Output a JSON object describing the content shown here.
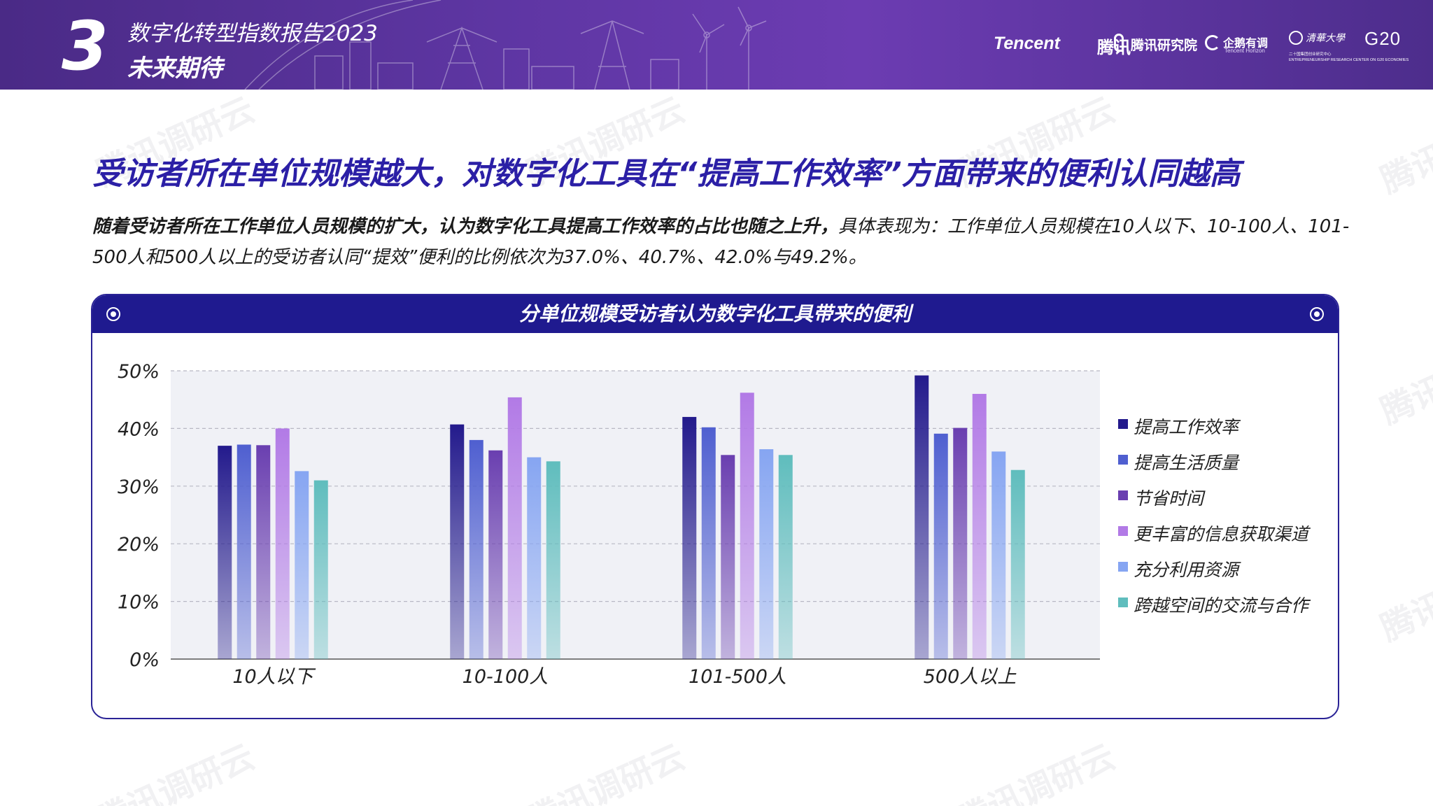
{
  "header": {
    "section_number": "3",
    "report_title": "数字化转型指数报告2023",
    "section_name": "未来期待",
    "logos": {
      "tencent": "Tencent",
      "tencent_cn": "腾讯",
      "research": "腾讯研究院",
      "penguin": "企鹅有调",
      "penguin_sub": "Tencent Horizon",
      "tsinghua": "清華大學",
      "g20": "G20",
      "erc_line1": "二十国集团创业研究中心",
      "erc_line2": "ENTREPRENEURSHIP RESEARCH CENTER ON G20 ECONOMIES"
    }
  },
  "headline": "受访者所在单位规模越大，对数字化工具在“提高工作效率”方面带来的便利认同越高",
  "description": {
    "bold": "随着受访者所在工作单位人员规模的扩大，认为数字化工具提高工作效率的占比也随之上升，",
    "normal": "具体表现为：工作单位人员规模在10人以下、10-100人、101-500人和500人以上的受访者认同“提效”便利的比例依次为37.0%、40.7%、42.0%与49.2%。"
  },
  "watermark": "腾讯调研云",
  "colors": {
    "header_bg": "#5a34a0",
    "headline": "#2b1fa6",
    "card_border": "#2a2396",
    "card_head": "#1f1a8f",
    "plot_bg": "#f0f1f6"
  },
  "chart_data": {
    "type": "bar",
    "title": "分单位规模受访者认为数字化工具带来的便利",
    "categories": [
      "10人以下",
      "10-100人",
      "101-500人",
      "500人以上"
    ],
    "ylim": [
      0,
      50
    ],
    "yticks": [
      0,
      10,
      20,
      30,
      40,
      50
    ],
    "ytick_labels": [
      "0%",
      "10%",
      "20%",
      "30%",
      "40%",
      "50%"
    ],
    "grid": true,
    "legend_position": "right",
    "series": [
      {
        "name": "提高工作效率",
        "color": "#231a8c",
        "values": [
          37.0,
          40.7,
          42.0,
          49.2
        ]
      },
      {
        "name": "提高生活质量",
        "color": "#4f5fd0",
        "values": [
          37.2,
          38.0,
          40.2,
          39.1
        ]
      },
      {
        "name": "节省时间",
        "color": "#6a3fb0",
        "values": [
          37.1,
          36.2,
          35.4,
          40.1
        ]
      },
      {
        "name": "更丰富的信息获取渠道",
        "color": "#b27ae6",
        "values": [
          40.0,
          45.4,
          46.2,
          46.0
        ]
      },
      {
        "name": "充分利用资源",
        "color": "#86a5f2",
        "values": [
          32.6,
          35.0,
          36.4,
          36.0
        ]
      },
      {
        "name": "跨越空间的交流与合作",
        "color": "#5fbdbd",
        "values": [
          31.0,
          34.3,
          35.4,
          32.8
        ]
      }
    ]
  }
}
